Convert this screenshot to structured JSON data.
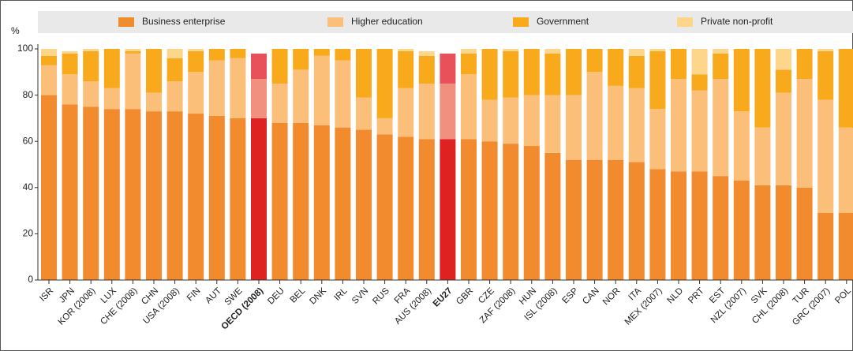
{
  "chart_data": {
    "type": "stacked_bar",
    "y_label": "%",
    "categories": [
      "ISR",
      "JPN",
      "KOR (2008)",
      "LUX",
      "CHE (2008)",
      "CHN",
      "USA (2008)",
      "FIN",
      "AUT",
      "SWE",
      "OECD (2008)",
      "DEU",
      "BEL",
      "DNK",
      "IRL",
      "SVN",
      "RUS",
      "FRA",
      "AUS (2008)",
      "EU27",
      "GBR",
      "CZE",
      "ZAF (2008)",
      "HUN",
      "ISL (2008)",
      "ESP",
      "CAN",
      "NOR",
      "ITA",
      "MEX (2007)",
      "NLD",
      "PRT",
      "EST",
      "NZL (2007)",
      "SVK",
      "CHL (2008)",
      "TUR",
      "GRC (2007)",
      "POL"
    ],
    "highlight_categories": [
      "OECD (2008)",
      "EU27"
    ],
    "series": [
      {
        "name": "Business enterprise",
        "color": "#f28a2e",
        "highlight_color": "#de2222",
        "values": [
          80,
          76,
          75,
          74,
          74,
          73,
          73,
          72,
          71,
          70,
          70,
          68,
          68,
          67,
          66,
          65,
          63,
          62,
          61,
          61,
          61,
          60,
          59,
          58,
          55,
          52,
          52,
          52,
          51,
          48,
          47,
          47,
          45,
          43,
          41,
          41,
          40,
          29,
          29
        ]
      },
      {
        "name": "Higher education",
        "color": "#fbbf7a",
        "highlight_color": "#f29080",
        "values": [
          13,
          13,
          11,
          9,
          24,
          8,
          13,
          18,
          24,
          26,
          17,
          17,
          23,
          30,
          29,
          14,
          7,
          21,
          24,
          24,
          28,
          18,
          20,
          22,
          25,
          28,
          38,
          32,
          32,
          26,
          40,
          35,
          42,
          30,
          25,
          40,
          47,
          49,
          37
        ]
      },
      {
        "name": "Government",
        "color": "#f9a91c",
        "highlight_color": "#e8505a",
        "values": [
          4,
          9,
          13,
          17,
          1,
          19,
          10,
          9,
          5,
          4,
          11,
          15,
          9,
          3,
          5,
          21,
          30,
          16,
          12,
          13,
          9,
          22,
          20,
          20,
          18,
          20,
          10,
          16,
          14,
          25,
          13,
          7,
          11,
          27,
          34,
          10,
          13,
          21,
          34
        ]
      },
      {
        "name": "Private non-profit",
        "color": "#fdd68c",
        "highlight_color": "#f6b0b0",
        "values": [
          3,
          1,
          1,
          0,
          1,
          0,
          4,
          1,
          0,
          0,
          0,
          0,
          0,
          0,
          0,
          0,
          0,
          1,
          2,
          0,
          2,
          0,
          1,
          0,
          2,
          0,
          0,
          0,
          3,
          1,
          0,
          11,
          2,
          0,
          0,
          9,
          0,
          1,
          0
        ]
      }
    ],
    "ylim": [
      0,
      100
    ],
    "yticks": [
      0,
      20,
      40,
      60,
      80,
      100
    ],
    "grid": false,
    "legend": "top"
  }
}
